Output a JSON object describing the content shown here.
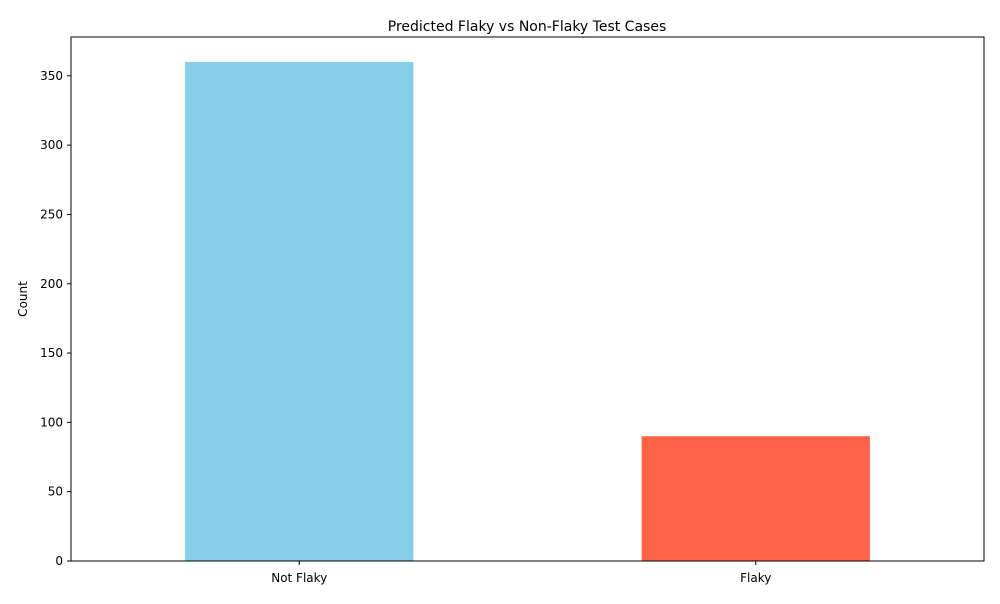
{
  "chart_data": {
    "type": "bar",
    "title": "Predicted Flaky vs Non-Flaky Test Cases",
    "xlabel": "",
    "ylabel": "Count",
    "categories": [
      "Not Flaky",
      "Flaky"
    ],
    "values": [
      360,
      90
    ],
    "colors": [
      "#87CEEB",
      "#FF6347"
    ],
    "ylim": [
      0,
      378
    ],
    "yticks": [
      0,
      50,
      100,
      150,
      200,
      250,
      300,
      350
    ],
    "grid": false,
    "legend": "none"
  }
}
